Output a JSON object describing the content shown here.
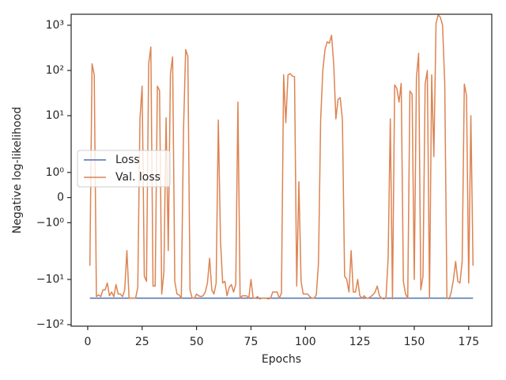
{
  "chart_data": {
    "type": "line",
    "xlabel": "Epochs",
    "ylabel": "Negative log-likelihood",
    "yscale": "symlog",
    "linthresh": 2,
    "xlim": [
      -7.6,
      185.6
    ],
    "ylim": [
      -108,
      1750
    ],
    "xticks": [
      0,
      25,
      50,
      75,
      100,
      125,
      150,
      175
    ],
    "yticks": [
      {
        "value": -100,
        "label": "−10²"
      },
      {
        "value": -10,
        "label": "−10¹"
      },
      {
        "value": -1,
        "label": "−10⁰"
      },
      0,
      {
        "value": 1,
        "label": "10⁰"
      },
      {
        "value": 10,
        "label": "10¹"
      },
      {
        "value": 100,
        "label": "10²"
      },
      {
        "value": 1000,
        "label": "10³"
      }
    ],
    "legend": "center left",
    "x": [
      1,
      2,
      3,
      4,
      5,
      6,
      7,
      8,
      9,
      10,
      11,
      12,
      13,
      14,
      15,
      16,
      17,
      18,
      19,
      20,
      21,
      22,
      23,
      24,
      25,
      26,
      27,
      28,
      29,
      30,
      31,
      32,
      33,
      34,
      35,
      36,
      37,
      38,
      39,
      40,
      41,
      42,
      43,
      44,
      45,
      46,
      47,
      48,
      49,
      50,
      51,
      52,
      53,
      54,
      55,
      56,
      57,
      58,
      59,
      60,
      61,
      62,
      63,
      64,
      65,
      66,
      67,
      68,
      69,
      70,
      71,
      72,
      73,
      74,
      75,
      76,
      77,
      78,
      79,
      80,
      81,
      82,
      83,
      84,
      85,
      86,
      87,
      88,
      89,
      90,
      91,
      92,
      93,
      94,
      95,
      96,
      97,
      98,
      99,
      100,
      101,
      102,
      103,
      104,
      105,
      106,
      107,
      108,
      109,
      110,
      111,
      112,
      113,
      114,
      115,
      116,
      117,
      118,
      119,
      120,
      121,
      122,
      123,
      124,
      125,
      126,
      127,
      128,
      129,
      130,
      131,
      132,
      133,
      134,
      135,
      136,
      137,
      138,
      139,
      140,
      141,
      142,
      143,
      144,
      145,
      146,
      147,
      148,
      149,
      150,
      151,
      152,
      153,
      154,
      155,
      156,
      157,
      158,
      159,
      160,
      161,
      162,
      163,
      164,
      165,
      166,
      167,
      168,
      169,
      170,
      171,
      172,
      173,
      174,
      175,
      176,
      177
    ],
    "series": [
      {
        "name": "Loss",
        "color": "#4c72b0",
        "values": [
          -26,
          -26,
          -26,
          -26,
          -26,
          -26,
          -26,
          -26,
          -26,
          -26,
          -26,
          -26,
          -26,
          -26,
          -26,
          -26,
          -26,
          -26,
          -26,
          -26,
          -26,
          -26,
          -26,
          -26,
          -26,
          -26,
          -26,
          -26,
          -26,
          -26,
          -26,
          -26,
          -26,
          -26,
          -26,
          -26,
          -26,
          -26,
          -26,
          -26,
          -26,
          -26,
          -26,
          -26,
          -26,
          -26,
          -26,
          -26,
          -26,
          -26,
          -26,
          -26,
          -26,
          -26,
          -26,
          -26,
          -26,
          -26,
          -26,
          -26,
          -26,
          -26,
          -26,
          -26,
          -26,
          -26,
          -26,
          -26,
          -26,
          -26,
          -26,
          -26,
          -26,
          -26,
          -26,
          -26,
          -26,
          -26,
          -26,
          -26,
          -26,
          -26,
          -26,
          -26,
          -26,
          -26,
          -26,
          -26,
          -26,
          -26,
          -26,
          -26,
          -26,
          -26,
          -26,
          -26,
          -26,
          -26,
          -26,
          -26,
          -26,
          -26,
          -26,
          -26,
          -26,
          -26,
          -26,
          -26,
          -26,
          -26,
          -26,
          -26,
          -26,
          -26,
          -26,
          -26,
          -26,
          -26,
          -26,
          -26,
          -26,
          -26,
          -26,
          -26,
          -26,
          -26,
          -26,
          -26,
          -26,
          -26,
          -26,
          -26,
          -26,
          -26,
          -26,
          -26,
          -26,
          -26,
          -26,
          -26,
          -26,
          -26,
          -26,
          -26,
          -26,
          -26,
          -26,
          -26,
          -26,
          -26,
          -26,
          -26,
          -26,
          -26,
          -26,
          -26,
          -26,
          -26,
          -26,
          -26,
          -26,
          -26,
          -26,
          -26,
          -26,
          -26,
          -26,
          -26,
          -26,
          -26,
          -26,
          -26,
          -26,
          -26,
          -26,
          -26,
          -26
        ]
      },
      {
        "name": "Val. loss",
        "color": "#dd8452",
        "values": [
          -5,
          140,
          80,
          -24,
          -22,
          -24,
          -17,
          -17,
          -12,
          -23,
          -19,
          -24,
          -13,
          -21,
          -21,
          -24,
          -17,
          -2.3,
          -26,
          -26,
          -26,
          -26,
          -15,
          8.5,
          45,
          -8.5,
          -11,
          140,
          330,
          -14,
          -14,
          45,
          36,
          -21,
          -7,
          9,
          -2.3,
          85,
          200,
          -11,
          -21,
          -22,
          -26,
          4.6,
          290,
          205,
          -17,
          -26,
          -26,
          -21,
          -23,
          -24,
          -23,
          -19,
          -12,
          -3.4,
          -17,
          -21,
          -12,
          8,
          -1.74,
          -12,
          -11,
          -23,
          -15,
          -13,
          -19,
          -13,
          20,
          -26,
          -23,
          -23,
          -23,
          -26,
          -10,
          -26,
          -26,
          -24,
          -27,
          -26,
          -26,
          -26,
          -27,
          -26,
          -19,
          -19,
          -19,
          -26,
          -20,
          80,
          7,
          80,
          85,
          75,
          73,
          -14,
          0.63,
          -11,
          -21,
          -21,
          -21,
          -24,
          -26,
          -26,
          -22,
          -4.4,
          8,
          100,
          290,
          430,
          400,
          600,
          140,
          8.5,
          23,
          25,
          8,
          -8.5,
          -10,
          -19,
          -2.3,
          -19,
          -19,
          -10,
          -23,
          -26,
          -23,
          -26,
          -26,
          -24,
          -22,
          -19,
          -14,
          -23,
          -26,
          -27,
          -26,
          -3.4,
          8.5,
          -27,
          48,
          40,
          20,
          52,
          -11,
          -21,
          -26,
          35,
          30,
          -10,
          70,
          240,
          -17,
          -8.5,
          50,
          100,
          -26,
          80,
          1.63,
          1100,
          1700,
          1500,
          1000,
          52,
          -26,
          -27,
          -19,
          -10,
          -4,
          -11,
          -12,
          -4,
          50,
          28,
          -12,
          10,
          -5
        ]
      }
    ]
  }
}
